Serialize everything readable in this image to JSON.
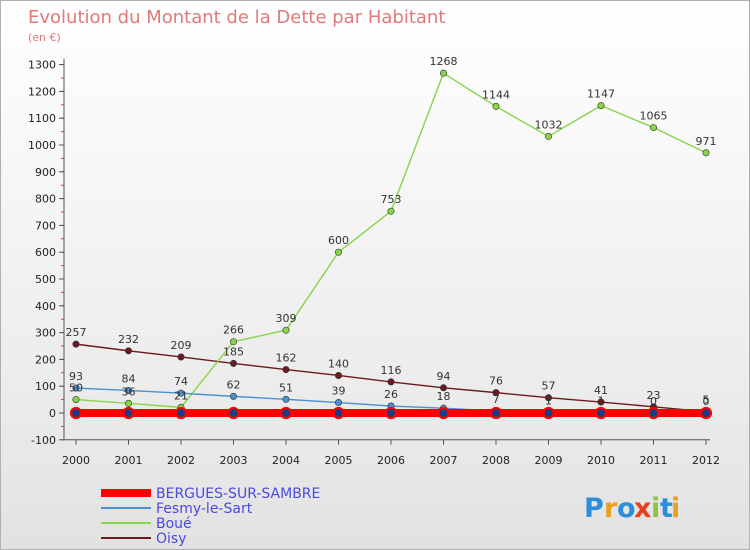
{
  "chart_data": {
    "type": "line",
    "title": "Evolution du Montant de la Dette par Habitant",
    "subtitle": "(en €)",
    "x": [
      "2000",
      "2001",
      "2002",
      "2003",
      "2004",
      "2005",
      "2006",
      "2007",
      "2008",
      "2009",
      "2010",
      "2011",
      "2012"
    ],
    "yticks": [
      "-100",
      "0",
      "100",
      "200",
      "300",
      "400",
      "500",
      "600",
      "700",
      "800",
      "900",
      "1000",
      "1100",
      "1200",
      "1300"
    ],
    "ylim": [
      -100,
      1300
    ],
    "grid": false,
    "legend_position": "bottom-left",
    "series": [
      {
        "name": "BERGUES-SUR-SAMBRE",
        "color": "#ff0000",
        "values": [
          0,
          0,
          0,
          0,
          0,
          0,
          0,
          0,
          0,
          0,
          0,
          0,
          0
        ]
      },
      {
        "name": "Fesmy-le-Sart",
        "color": "#4a8fd0",
        "values": [
          93,
          84,
          74,
          62,
          51,
          39,
          26,
          18,
          7,
          1,
          1,
          0,
          0
        ]
      },
      {
        "name": "Boué",
        "color": "#88d44a",
        "values": [
          50,
          36,
          21,
          266,
          309,
          600,
          753,
          1268,
          1144,
          1032,
          1147,
          1065,
          971
        ]
      },
      {
        "name": "Oisy",
        "color": "#6a1a20",
        "values": [
          257,
          232,
          209,
          185,
          162,
          140,
          116,
          94,
          76,
          57,
          41,
          23,
          5
        ]
      }
    ],
    "labels": [
      {
        "series": 1,
        "labels": [
          "93",
          "84",
          "74",
          "62",
          "51",
          "39",
          "26",
          "18",
          "7",
          "1",
          "1",
          "0",
          "0"
        ]
      },
      {
        "series": 2,
        "labels": [
          "50",
          "36",
          "21",
          "266",
          "309",
          "600",
          "753",
          "1268",
          "1144",
          "1032",
          "1147",
          "1065",
          "971"
        ]
      },
      {
        "series": 3,
        "labels": [
          "257",
          "232",
          "209",
          "185",
          "162",
          "140",
          "116",
          "94",
          "76",
          "57",
          "41",
          "23",
          "5"
        ]
      }
    ]
  },
  "logo": {
    "letters": [
      "P",
      "r",
      "o",
      "x",
      "i",
      "t",
      "i"
    ],
    "colors": [
      "#2a8fd8",
      "#e8a020",
      "#2a8fd8",
      "#e8401a",
      "#8cc640",
      "#2a8fd8",
      "#e8a020"
    ]
  }
}
